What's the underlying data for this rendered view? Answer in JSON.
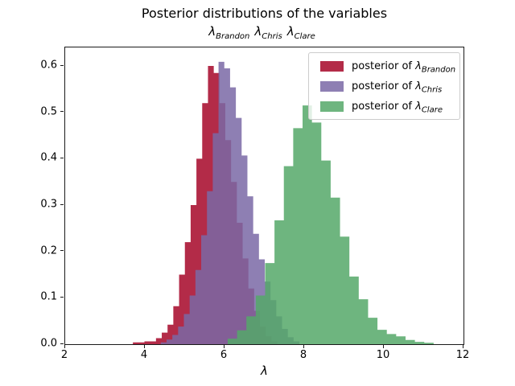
{
  "window": {
    "background": "#ffffff"
  },
  "chart_data": {
    "type": "histogram",
    "title": "Posterior distributions of the variables",
    "subtitle_vars": [
      {
        "symbol": "λ",
        "sub": "Brandon"
      },
      {
        "symbol": "λ",
        "sub": "Chris"
      },
      {
        "symbol": "λ",
        "sub": "Clare"
      }
    ],
    "xlabel": "λ",
    "xlim": [
      2,
      12
    ],
    "ylim": [
      0,
      0.64
    ],
    "grid": false,
    "legend_position": "upper right",
    "series": [
      {
        "name": "posterior of λ_Brandon",
        "color": "#A60628",
        "alpha": 0.85,
        "bin_start": 3.7,
        "bin_width": 0.145,
        "heights": [
          0.004,
          0.004,
          0.006,
          0.006,
          0.013,
          0.025,
          0.042,
          0.082,
          0.15,
          0.22,
          0.3,
          0.4,
          0.52,
          0.6,
          0.585,
          0.52,
          0.44,
          0.35,
          0.262,
          0.185,
          0.12,
          0.072,
          0.038,
          0.017,
          0.006
        ]
      },
      {
        "name": "posterior of λ_Chris",
        "color": "#7A68A6",
        "alpha": 0.85,
        "bin_start": 4.4,
        "bin_width": 0.145,
        "heights": [
          0.004,
          0.01,
          0.02,
          0.038,
          0.065,
          0.105,
          0.16,
          0.235,
          0.33,
          0.455,
          0.609,
          0.595,
          0.554,
          0.488,
          0.407,
          0.319,
          0.238,
          0.183,
          0.135,
          0.095,
          0.06,
          0.033,
          0.015,
          0.006
        ]
      },
      {
        "name": "posterior of λ_Clare",
        "color": "#55A868",
        "alpha": 0.85,
        "bin_start": 6.08,
        "bin_width": 0.235,
        "heights": [
          0.012,
          0.03,
          0.06,
          0.105,
          0.175,
          0.267,
          0.384,
          0.466,
          0.515,
          0.478,
          0.396,
          0.316,
          0.232,
          0.146,
          0.097,
          0.057,
          0.031,
          0.022,
          0.017,
          0.009,
          0.005,
          0.003
        ]
      }
    ]
  },
  "axes": {
    "x_ticks": [
      {
        "value": 2,
        "label": "2"
      },
      {
        "value": 4,
        "label": "4"
      },
      {
        "value": 6,
        "label": "6"
      },
      {
        "value": 8,
        "label": "8"
      },
      {
        "value": 10,
        "label": "10"
      },
      {
        "value": 12,
        "label": "12"
      }
    ],
    "y_ticks": [
      {
        "value": 0.0,
        "label": "0.0"
      },
      {
        "value": 0.1,
        "label": "0.1"
      },
      {
        "value": 0.2,
        "label": "0.2"
      },
      {
        "value": 0.3,
        "label": "0.3"
      },
      {
        "value": 0.4,
        "label": "0.4"
      },
      {
        "value": 0.5,
        "label": "0.5"
      },
      {
        "value": 0.6,
        "label": "0.6"
      }
    ]
  },
  "legend": {
    "items": [
      {
        "prefix": "posterior of ",
        "symbol": "λ",
        "sub": "Brandon",
        "color": "#A60628",
        "alpha": 0.85
      },
      {
        "prefix": "posterior of ",
        "symbol": "λ",
        "sub": "Chris",
        "color": "#7A68A6",
        "alpha": 0.85
      },
      {
        "prefix": "posterior of ",
        "symbol": "λ",
        "sub": "Clare",
        "color": "#55A868",
        "alpha": 0.85
      }
    ],
    "border_color": "#cccccc"
  }
}
